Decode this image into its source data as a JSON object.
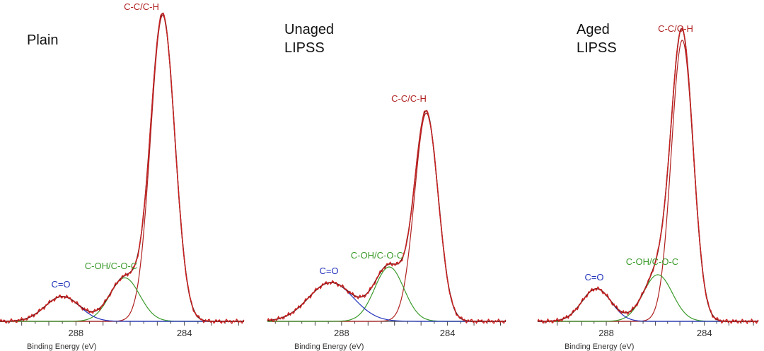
{
  "colors": {
    "envelope": "#cc2222",
    "envelope_dark": "#5a1a1a",
    "c_c": "#b02020",
    "c_oh": "#3a9a2a",
    "c_o": "#2233bb",
    "axis": "#444444"
  },
  "chart_data": [
    {
      "type": "line",
      "title": "Plain",
      "xlabel": "Binding Energy (eV)",
      "x_reversed": true,
      "xlim": [
        290.8,
        281.8
      ],
      "xticks": [
        288,
        284
      ],
      "ylim": [
        0,
        1.0
      ],
      "grid": false,
      "peaks": [
        {
          "name": "C-C/C-H",
          "label_color": "#b02020",
          "center": 284.8,
          "height": 0.985,
          "fwhm": 1.05
        },
        {
          "name": "C-OH/C-O-C",
          "label_color": "#3a9a2a",
          "center": 286.2,
          "height": 0.14,
          "fwhm": 1.3
        },
        {
          "name": "C=O",
          "label_color": "#2233bb",
          "center": 288.5,
          "height": 0.08,
          "fwhm": 1.5
        }
      ]
    },
    {
      "type": "line",
      "title": "Unaged\nLIPSS",
      "xlabel": "Binding Energy (eV)",
      "x_reversed": true,
      "xlim": [
        290.8,
        281.8
      ],
      "xticks": [
        288,
        284
      ],
      "ylim": [
        0,
        1.0
      ],
      "grid": false,
      "peaks": [
        {
          "name": "C-C/C-H",
          "label_color": "#b02020",
          "center": 284.8,
          "height": 0.67,
          "fwhm": 1.05
        },
        {
          "name": "C-OH/C-O-C",
          "label_color": "#3a9a2a",
          "center": 286.2,
          "height": 0.175,
          "fwhm": 1.3
        },
        {
          "name": "C=O",
          "label_color": "#2233bb",
          "center": 288.4,
          "height": 0.125,
          "fwhm": 2.0
        }
      ]
    },
    {
      "type": "line",
      "title": "Aged\nLIPSS",
      "xlabel": "Binding Energy (eV)",
      "x_reversed": true,
      "xlim": [
        290.8,
        281.8
      ],
      "xticks": [
        288,
        284
      ],
      "ylim": [
        0,
        1.0
      ],
      "grid": false,
      "peaks": [
        {
          "name": "C-C/C-H",
          "label_color": "#b02020",
          "center": 284.9,
          "height": 0.905,
          "fwhm": 1.05
        },
        {
          "name": "C-OH/C-O-C",
          "label_color": "#3a9a2a",
          "center": 285.9,
          "height": 0.15,
          "fwhm": 1.4
        },
        {
          "name": "C=O",
          "label_color": "#2233bb",
          "center": 288.4,
          "height": 0.105,
          "fwhm": 1.4
        }
      ]
    }
  ]
}
